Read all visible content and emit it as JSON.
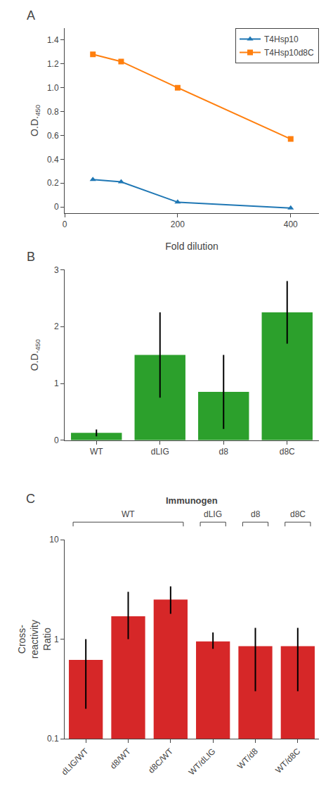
{
  "chart_data": [
    {
      "type": "line",
      "title": "A",
      "x": [
        50,
        100,
        200,
        400
      ],
      "series": [
        {
          "name": "T4Hsp10",
          "values": [
            0.23,
            0.21,
            0.04,
            -0.01
          ],
          "marker": "triangle-up",
          "line_style": "solid"
        },
        {
          "name": "T4Hsp10d8C",
          "values": [
            1.28,
            1.22,
            1.0,
            0.57
          ],
          "marker": "square",
          "line_style": "solid"
        }
      ],
      "xlabel": "Fold dilution",
      "ylabel": "O.D.",
      "annotations": [
        "450"
      ],
      "xlim": [
        0,
        450
      ],
      "xticks": [
        0,
        200,
        400
      ],
      "ylim": [
        -0.05,
        1.5
      ],
      "yticks": [
        0,
        0.2,
        0.4,
        0.6,
        0.8,
        {
          "value": 1.0,
          "label": "1.0"
        },
        1.2,
        1.4
      ],
      "legend": "upper right",
      "grid": false
    },
    {
      "type": "bar",
      "title": "B",
      "categories": [
        "WT",
        "dLIG",
        "d8",
        "d8C"
      ],
      "values": [
        0.13,
        1.5,
        0.85,
        2.25
      ],
      "errors": [
        0.06,
        0.75,
        0.65,
        0.55
      ],
      "ylabel": "O.D.",
      "annotations": [
        "450"
      ],
      "ylim": [
        0,
        3
      ],
      "yticks": [
        0,
        1,
        2,
        3
      ],
      "grid": false
    },
    {
      "type": "bar",
      "title": "C",
      "categories": [
        "dLIG/WT",
        "d8/WT",
        "d8C/WT",
        "WT/dLIG",
        "WT/d8",
        "WT/d8C"
      ],
      "values": [
        0.62,
        1.7,
        2.5,
        0.95,
        0.85,
        0.85
      ],
      "errors_upper": [
        0.38,
        1.3,
        0.9,
        0.22,
        0.45,
        0.45
      ],
      "errors_lower": [
        0.42,
        0.7,
        0.7,
        0.15,
        0.55,
        0.55
      ],
      "ylabel": "Cross-\nreactivity\nRatio",
      "log": "y",
      "ylim": [
        0.1,
        10
      ],
      "yticks": [
        0.1,
        1,
        10
      ],
      "annotations": [
        {
          "text": "Immunogen"
        },
        {
          "text": "WT",
          "categories": [
            "dLIG/WT",
            "d8/WT",
            "d8C/WT"
          ]
        },
        {
          "text": "dLIG",
          "categories": [
            "WT/dLIG"
          ]
        },
        {
          "text": "d8",
          "categories": [
            "WT/d8"
          ]
        },
        {
          "text": "d8C",
          "categories": [
            "WT/d8C"
          ]
        }
      ],
      "grid": false
    }
  ]
}
